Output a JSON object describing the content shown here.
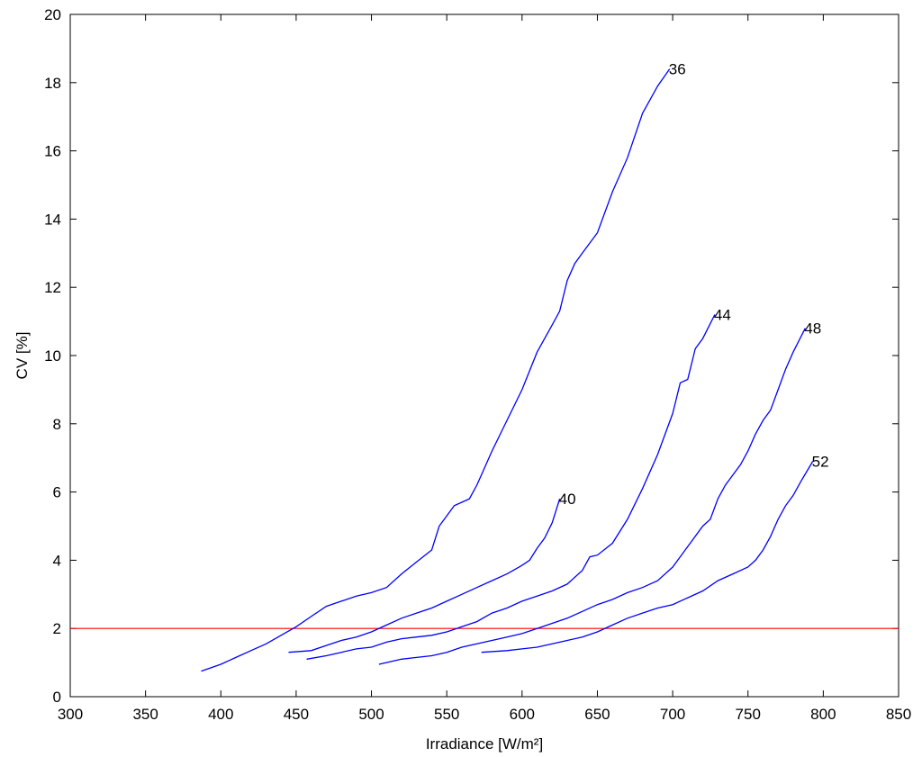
{
  "chart_data": {
    "type": "line",
    "xlabel": "Irradiance [W/m²]",
    "ylabel": "CV [%]",
    "xlim": [
      300,
      850
    ],
    "ylim": [
      0,
      20
    ],
    "xticks": [
      300,
      350,
      400,
      450,
      500,
      550,
      600,
      650,
      700,
      750,
      800,
      850
    ],
    "yticks": [
      0,
      2,
      4,
      6,
      8,
      10,
      12,
      14,
      16,
      18,
      20
    ],
    "grid": false,
    "series": [
      {
        "name": "36",
        "color": "#0000ff",
        "x": [
          387,
          400,
          410,
          420,
          430,
          440,
          450,
          460,
          470,
          480,
          490,
          500,
          510,
          520,
          530,
          540,
          545,
          550,
          555,
          560,
          565,
          570,
          575,
          580,
          590,
          600,
          610,
          620,
          625,
          630,
          635,
          640,
          650,
          660,
          670,
          680,
          690,
          698
        ],
        "y": [
          0.75,
          0.95,
          1.15,
          1.35,
          1.55,
          1.8,
          2.05,
          2.35,
          2.65,
          2.8,
          2.95,
          3.05,
          3.2,
          3.6,
          3.95,
          4.3,
          5.0,
          5.3,
          5.6,
          5.7,
          5.8,
          6.2,
          6.7,
          7.2,
          8.1,
          9.0,
          10.1,
          10.9,
          11.3,
          12.2,
          12.7,
          13.0,
          13.6,
          14.8,
          15.8,
          17.1,
          17.9,
          18.4
        ]
      },
      {
        "name": "40",
        "color": "#0000ff",
        "x": [
          445,
          460,
          470,
          480,
          490,
          500,
          510,
          520,
          530,
          540,
          550,
          560,
          570,
          580,
          590,
          600,
          605,
          610,
          615,
          620,
          625
        ],
        "y": [
          1.3,
          1.35,
          1.5,
          1.65,
          1.75,
          1.9,
          2.1,
          2.3,
          2.45,
          2.6,
          2.8,
          3.0,
          3.2,
          3.4,
          3.6,
          3.85,
          4.0,
          4.35,
          4.65,
          5.1,
          5.8
        ]
      },
      {
        "name": "44",
        "color": "#0000ff",
        "x": [
          457,
          470,
          480,
          490,
          500,
          510,
          520,
          530,
          540,
          550,
          560,
          570,
          580,
          590,
          600,
          610,
          620,
          630,
          640,
          645,
          650,
          660,
          670,
          680,
          690,
          700,
          705,
          710,
          715,
          720,
          728
        ],
        "y": [
          1.1,
          1.2,
          1.3,
          1.4,
          1.45,
          1.6,
          1.7,
          1.75,
          1.8,
          1.9,
          2.05,
          2.2,
          2.45,
          2.6,
          2.8,
          2.95,
          3.1,
          3.3,
          3.7,
          4.1,
          4.15,
          4.5,
          5.2,
          6.1,
          7.1,
          8.3,
          9.2,
          9.3,
          10.2,
          10.5,
          11.2
        ]
      },
      {
        "name": "48",
        "color": "#0000ff",
        "x": [
          505,
          520,
          530,
          540,
          550,
          560,
          570,
          580,
          590,
          600,
          610,
          620,
          630,
          640,
          650,
          660,
          670,
          680,
          690,
          700,
          710,
          720,
          725,
          730,
          735,
          740,
          745,
          750,
          755,
          760,
          765,
          770,
          775,
          780,
          788
        ],
        "y": [
          0.95,
          1.1,
          1.15,
          1.2,
          1.3,
          1.45,
          1.55,
          1.65,
          1.75,
          1.85,
          2.0,
          2.15,
          2.3,
          2.5,
          2.7,
          2.85,
          3.05,
          3.2,
          3.4,
          3.8,
          4.4,
          5.0,
          5.2,
          5.8,
          6.2,
          6.5,
          6.8,
          7.2,
          7.7,
          8.1,
          8.4,
          9.0,
          9.6,
          10.1,
          10.8
        ]
      },
      {
        "name": "52",
        "color": "#0000ff",
        "x": [
          573,
          590,
          600,
          610,
          620,
          630,
          640,
          650,
          660,
          670,
          680,
          690,
          700,
          710,
          720,
          730,
          740,
          750,
          755,
          760,
          765,
          770,
          775,
          780,
          785,
          793
        ],
        "y": [
          1.3,
          1.35,
          1.4,
          1.45,
          1.55,
          1.65,
          1.75,
          1.9,
          2.1,
          2.3,
          2.45,
          2.6,
          2.7,
          2.9,
          3.1,
          3.4,
          3.6,
          3.8,
          4.0,
          4.3,
          4.7,
          5.2,
          5.6,
          5.9,
          6.3,
          6.9
        ]
      }
    ],
    "reference_line": {
      "y": 2,
      "color": "#ff0000"
    }
  }
}
